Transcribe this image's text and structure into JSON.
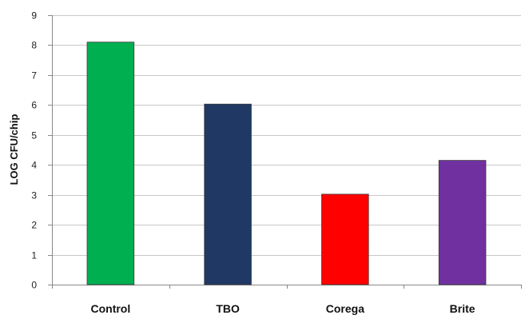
{
  "chart_data": {
    "type": "bar",
    "title": "",
    "xlabel": "",
    "ylabel": "LOG CFU/chip",
    "categories": [
      "Control",
      "TBO",
      "Corega",
      "Brite"
    ],
    "values": [
      8.1,
      6.03,
      3.02,
      4.15
    ],
    "colors": [
      "#00b050",
      "#1f3864",
      "#ff0000",
      "#7030a0"
    ],
    "ylim": [
      0,
      9
    ],
    "yticks": [
      "0",
      "1",
      "2",
      "3",
      "4",
      "5",
      "6",
      "7",
      "8",
      "9"
    ],
    "grid": true,
    "legend": "none"
  }
}
